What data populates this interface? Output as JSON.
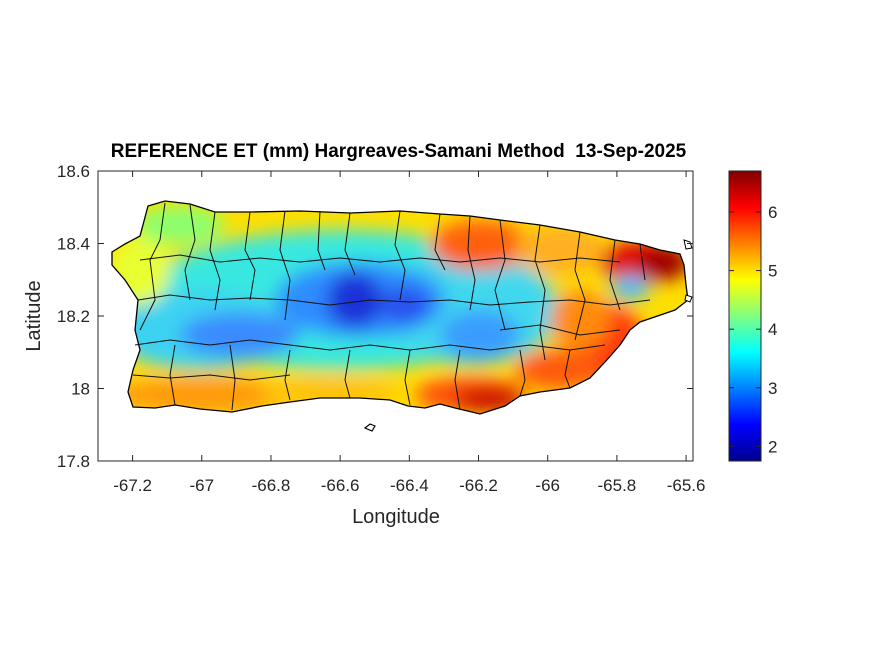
{
  "title": "REFERENCE ET (mm) Hargreaves-Samani Method  13-Sep-2025",
  "axes": {
    "xlabel": "Longitude",
    "ylabel": "Latitude",
    "xlim": [
      -67.3,
      -65.58
    ],
    "ylim": [
      17.8,
      18.6
    ],
    "x_ticks": [
      "-67.2",
      "-67",
      "-66.8",
      "-66.6",
      "-66.4",
      "-66.2",
      "-66",
      "-65.8",
      "-65.6"
    ],
    "y_ticks": [
      "18.6",
      "18.4",
      "18.2",
      "18",
      "17.8"
    ]
  },
  "colorbar": {
    "colormap": "jet",
    "range": [
      1.75,
      6.7
    ],
    "ticks": [
      "2",
      "3",
      "4",
      "5",
      "6"
    ]
  },
  "map": {
    "region": "Puerto Rico",
    "units": "mm",
    "colors": {
      "low": "#00008f",
      "mid": "#80ff80",
      "high": "#800000"
    }
  }
}
